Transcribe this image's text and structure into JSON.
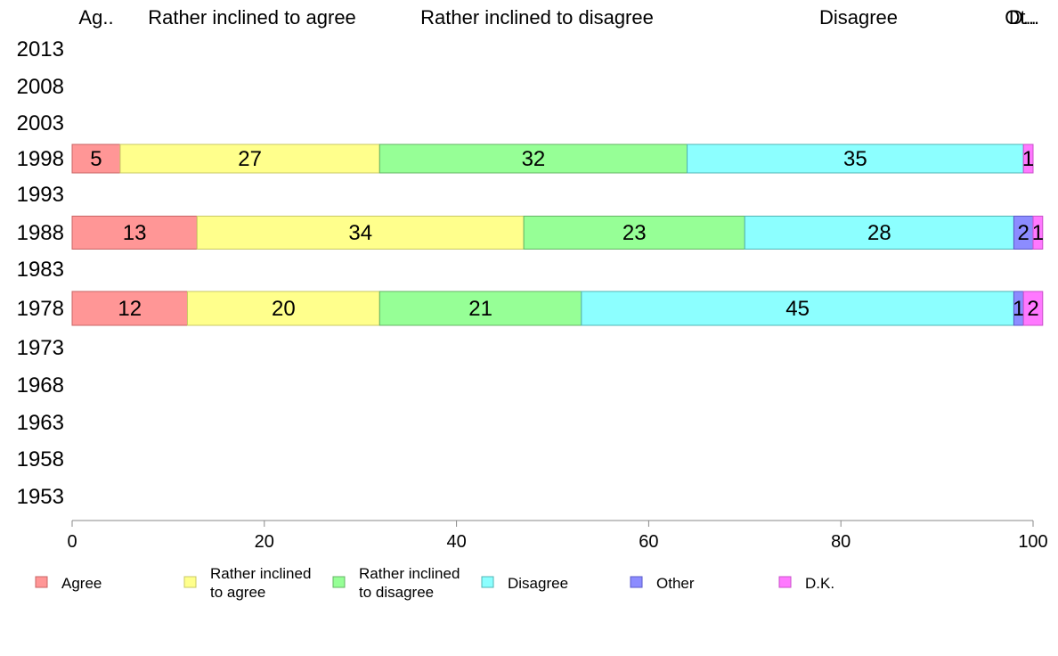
{
  "chart_data": {
    "type": "bar",
    "orientation": "horizontal",
    "stacked": true,
    "years": [
      "2013",
      "2008",
      "2003",
      "1998",
      "1993",
      "1988",
      "1983",
      "1978",
      "1973",
      "1968",
      "1963",
      "1958",
      "1953"
    ],
    "header_labels": [
      "Ag..",
      "Rather inclined to agree",
      "Rather inclined to disagree",
      "Disagree",
      "Ot..",
      "D..."
    ],
    "series": [
      {
        "name": "Agree",
        "color": "#ff9696",
        "border": "#c86464",
        "legend": [
          "Agree"
        ],
        "values": {
          "1998": 5,
          "1988": 13,
          "1978": 12
        }
      },
      {
        "name": "Rather inclined to agree",
        "color": "#ffff8c",
        "border": "#c8c864",
        "legend": [
          "Rather inclined",
          "to agree"
        ],
        "values": {
          "1998": 27,
          "1988": 34,
          "1978": 20
        }
      },
      {
        "name": "Rather inclined to disagree",
        "color": "#96ff96",
        "border": "#64b464",
        "legend": [
          "Rather inclined",
          "to disagree"
        ],
        "values": {
          "1998": 32,
          "1988": 23,
          "1978": 21
        }
      },
      {
        "name": "Disagree",
        "color": "#8cffff",
        "border": "#50b4b4",
        "legend": [
          "Disagree"
        ],
        "values": {
          "1998": 35,
          "1988": 28,
          "1978": 45
        }
      },
      {
        "name": "Other",
        "color": "#8c8cff",
        "border": "#5a5ac8",
        "legend": [
          "Other"
        ],
        "values": {
          "1998": 0,
          "1988": 2,
          "1978": 1
        }
      },
      {
        "name": "D.K.",
        "color": "#ff78ff",
        "border": "#c850c8",
        "legend": [
          "D.K."
        ],
        "values": {
          "1998": 1,
          "1988": 1,
          "1978": 2
        }
      }
    ],
    "xlim": [
      0,
      100
    ],
    "xticks": [
      0,
      20,
      40,
      60,
      80,
      100
    ],
    "grid": false,
    "legend_position": "bottom"
  }
}
